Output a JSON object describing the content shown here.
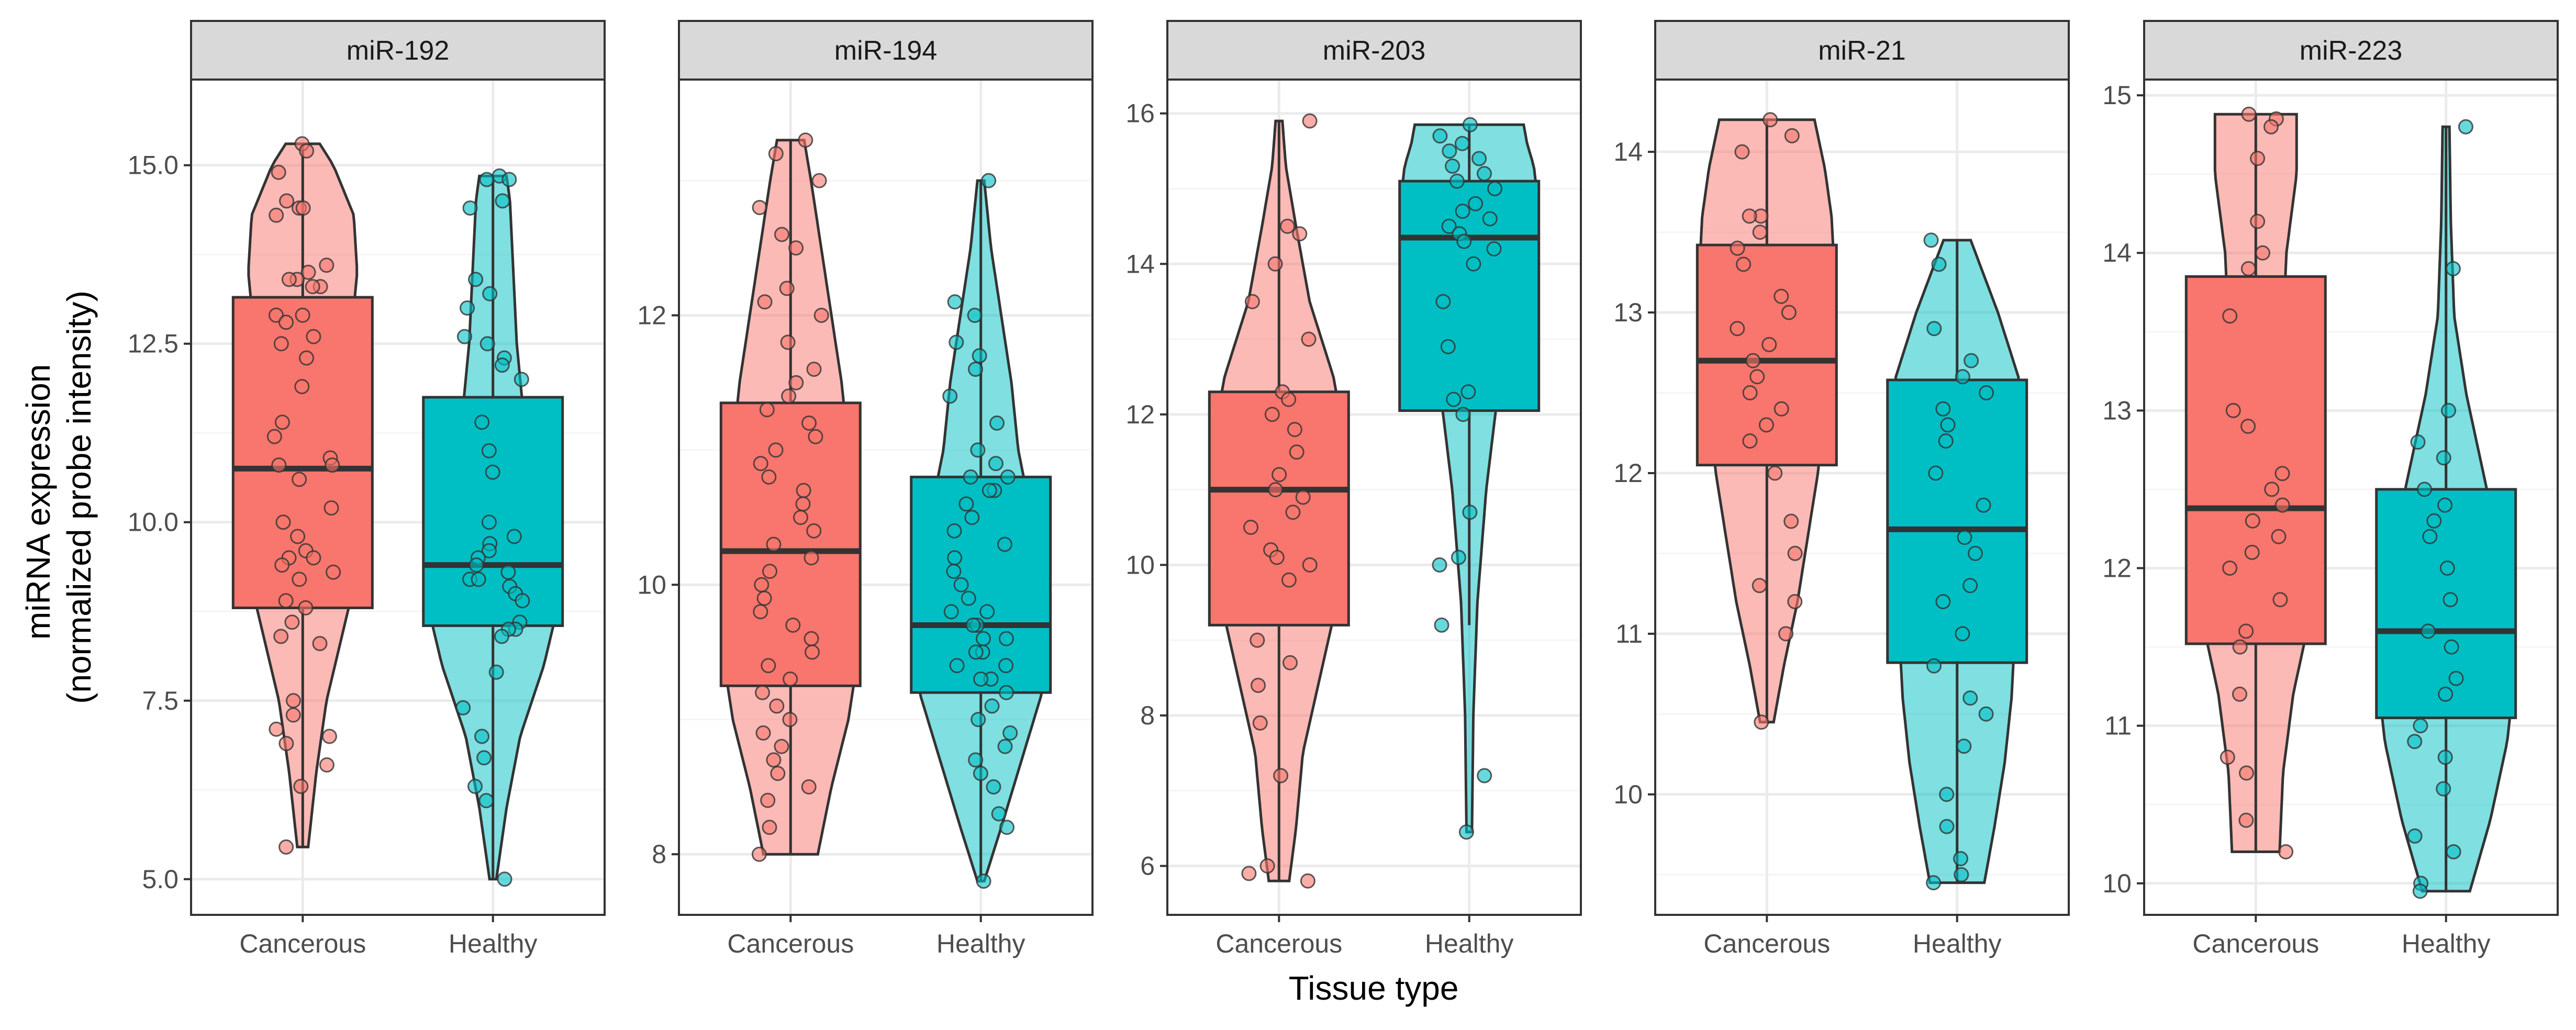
{
  "figure": {
    "xlabel": "Tissue type",
    "ylabel_line1": "miRNA expression",
    "ylabel_line2": "(normalized probe intensity)"
  },
  "colors": {
    "Cancerous": "#F8766D",
    "Healthy": "#00BFC4",
    "strip": "#D9D9D9",
    "grid_major": "#EBEBEB",
    "grid_minor": "#F5F5F5",
    "outline": "#333333"
  },
  "chart_data": [
    {
      "type": "violin+box+jitter",
      "title": "miR-192",
      "categories": [
        "Cancerous",
        "Healthy"
      ],
      "ylim": [
        4.5,
        16.2
      ],
      "yticks": [
        5.0,
        7.5,
        10.0,
        12.5,
        15.0
      ],
      "yticklabels": [
        "5.0",
        "7.5",
        "10.0",
        "12.5",
        "15.0"
      ],
      "series": [
        {
          "name": "Cancerous",
          "range": [
            5.45,
            15.3
          ],
          "box": {
            "q1": 8.8,
            "median": 10.75,
            "q3": 13.15,
            "whisker_low": 5.45,
            "whisker_high": 15.3
          },
          "density": [
            [
              5.45,
              0.08
            ],
            [
              6.5,
              0.2
            ],
            [
              7.5,
              0.35
            ],
            [
              8.5,
              0.6
            ],
            [
              9.5,
              0.85
            ],
            [
              10.5,
              1.0
            ],
            [
              11.5,
              0.8
            ],
            [
              12.5,
              0.7
            ],
            [
              13.5,
              0.8
            ],
            [
              14.3,
              0.75
            ],
            [
              15.0,
              0.45
            ],
            [
              15.3,
              0.25
            ]
          ],
          "points": [
            15.3,
            15.2,
            14.9,
            14.5,
            14.4,
            14.4,
            14.3,
            13.6,
            13.5,
            13.4,
            13.4,
            13.3,
            13.3,
            12.9,
            12.9,
            12.8,
            12.6,
            12.5,
            12.3,
            11.9,
            11.4,
            11.2,
            10.9,
            10.8,
            10.8,
            10.6,
            10.2,
            10.0,
            9.8,
            9.6,
            9.5,
            9.5,
            9.4,
            9.3,
            9.2,
            8.9,
            8.8,
            8.6,
            8.4,
            8.3,
            7.5,
            7.3,
            7.1,
            7.0,
            6.9,
            6.6,
            6.3,
            5.45
          ]
        },
        {
          "name": "Healthy",
          "range": [
            5.0,
            14.85
          ],
          "box": {
            "q1": 8.55,
            "median": 9.4,
            "q3": 11.75,
            "whisker_low": 5.0,
            "whisker_high": 14.85
          },
          "density": [
            [
              5.0,
              0.05
            ],
            [
              6.0,
              0.2
            ],
            [
              7.0,
              0.4
            ],
            [
              8.0,
              0.75
            ],
            [
              9.0,
              1.0
            ],
            [
              9.6,
              1.0
            ],
            [
              10.5,
              0.7
            ],
            [
              11.5,
              0.45
            ],
            [
              12.5,
              0.35
            ],
            [
              13.5,
              0.3
            ],
            [
              14.5,
              0.25
            ],
            [
              14.85,
              0.2
            ]
          ],
          "points": [
            14.85,
            14.8,
            14.8,
            14.5,
            14.4,
            13.4,
            13.2,
            13.0,
            12.6,
            12.5,
            12.3,
            12.2,
            12.0,
            11.4,
            11.0,
            10.7,
            10.0,
            9.8,
            9.7,
            9.6,
            9.5,
            9.4,
            9.3,
            9.2,
            9.2,
            9.1,
            9.0,
            8.9,
            8.6,
            8.5,
            8.5,
            8.4,
            7.9,
            7.4,
            7.0,
            6.7,
            6.3,
            6.1,
            5.0
          ]
        }
      ]
    },
    {
      "type": "violin+box+jitter",
      "title": "miR-194",
      "categories": [
        "Cancerous",
        "Healthy"
      ],
      "ylim": [
        7.55,
        13.75
      ],
      "yticks": [
        8,
        10,
        12
      ],
      "yticklabels": [
        "8",
        "10",
        "12"
      ],
      "series": [
        {
          "name": "Cancerous",
          "range": [
            8.0,
            13.3
          ],
          "box": {
            "q1": 9.25,
            "median": 10.25,
            "q3": 11.35,
            "whisker_low": 8.0,
            "whisker_high": 13.3
          },
          "density": [
            [
              8.0,
              0.4
            ],
            [
              8.5,
              0.6
            ],
            [
              9.0,
              0.85
            ],
            [
              9.5,
              1.0
            ],
            [
              10.0,
              1.0
            ],
            [
              10.5,
              0.95
            ],
            [
              11.0,
              0.85
            ],
            [
              11.5,
              0.75
            ],
            [
              12.0,
              0.6
            ],
            [
              12.5,
              0.45
            ],
            [
              13.0,
              0.3
            ],
            [
              13.3,
              0.2
            ]
          ],
          "points": [
            13.3,
            13.2,
            13.0,
            12.8,
            12.6,
            12.5,
            12.2,
            12.1,
            12.0,
            11.8,
            11.6,
            11.5,
            11.4,
            11.3,
            11.2,
            11.1,
            11.0,
            10.9,
            10.8,
            10.7,
            10.6,
            10.5,
            10.4,
            10.3,
            10.2,
            10.1,
            10.0,
            9.9,
            9.8,
            9.7,
            9.6,
            9.5,
            9.4,
            9.3,
            9.2,
            9.1,
            9.0,
            8.9,
            8.8,
            8.7,
            8.6,
            8.5,
            8.4,
            8.2,
            8.0
          ]
        },
        {
          "name": "Healthy",
          "range": [
            7.8,
            13.0
          ],
          "box": {
            "q1": 9.2,
            "median": 9.7,
            "q3": 10.8,
            "whisker_low": 7.8,
            "whisker_high": 13.0
          },
          "density": [
            [
              7.8,
              0.05
            ],
            [
              8.2,
              0.3
            ],
            [
              8.7,
              0.6
            ],
            [
              9.2,
              0.9
            ],
            [
              9.6,
              1.0
            ],
            [
              10.0,
              0.9
            ],
            [
              10.5,
              0.75
            ],
            [
              11.0,
              0.55
            ],
            [
              11.5,
              0.45
            ],
            [
              12.0,
              0.3
            ],
            [
              12.5,
              0.15
            ],
            [
              13.0,
              0.05
            ]
          ],
          "points": [
            13.0,
            12.1,
            12.0,
            11.8,
            11.7,
            11.6,
            11.4,
            11.2,
            11.0,
            10.9,
            10.8,
            10.8,
            10.7,
            10.7,
            10.6,
            10.5,
            10.4,
            10.3,
            10.2,
            10.1,
            10.0,
            9.9,
            9.8,
            9.8,
            9.7,
            9.7,
            9.6,
            9.6,
            9.5,
            9.5,
            9.4,
            9.4,
            9.3,
            9.3,
            9.2,
            9.1,
            9.0,
            8.9,
            8.8,
            8.7,
            8.6,
            8.5,
            8.3,
            8.2,
            7.8
          ]
        }
      ]
    },
    {
      "type": "violin+box+jitter",
      "title": "miR-203",
      "categories": [
        "Cancerous",
        "Healthy"
      ],
      "ylim": [
        5.35,
        16.45
      ],
      "yticks": [
        6,
        8,
        10,
        12,
        14,
        16
      ],
      "yticklabels": [
        "6",
        "8",
        "10",
        "12",
        "14",
        "16"
      ],
      "series": [
        {
          "name": "Cancerous",
          "range": [
            5.8,
            15.9
          ],
          "box": {
            "q1": 9.2,
            "median": 11.0,
            "q3": 12.3,
            "whisker_low": 5.8,
            "whisker_high": 15.9
          },
          "density": [
            [
              5.8,
              0.15
            ],
            [
              6.5,
              0.25
            ],
            [
              7.5,
              0.35
            ],
            [
              8.5,
              0.6
            ],
            [
              9.5,
              0.85
            ],
            [
              10.5,
              1.0
            ],
            [
              11.5,
              1.0
            ],
            [
              12.5,
              0.8
            ],
            [
              13.5,
              0.45
            ],
            [
              14.5,
              0.25
            ],
            [
              15.3,
              0.1
            ],
            [
              15.9,
              0.05
            ]
          ],
          "points": [
            15.9,
            14.5,
            14.4,
            14.0,
            13.5,
            13.0,
            12.3,
            12.2,
            12.0,
            11.8,
            11.5,
            11.2,
            11.0,
            10.9,
            10.7,
            10.5,
            10.2,
            10.1,
            10.0,
            9.8,
            9.0,
            8.7,
            8.4,
            7.9,
            7.2,
            6.0,
            5.9,
            5.8
          ]
        },
        {
          "name": "Healthy",
          "range": [
            6.45,
            15.85
          ],
          "box": {
            "q1": 12.05,
            "median": 14.35,
            "q3": 15.1,
            "whisker_low": 9.2,
            "whisker_high": 15.85
          },
          "density": [
            [
              6.45,
              0.04
            ],
            [
              8.0,
              0.06
            ],
            [
              9.5,
              0.12
            ],
            [
              11.0,
              0.25
            ],
            [
              12.5,
              0.45
            ],
            [
              13.5,
              0.65
            ],
            [
              14.3,
              0.9
            ],
            [
              14.9,
              1.0
            ],
            [
              15.3,
              0.95
            ],
            [
              15.6,
              0.85
            ],
            [
              15.85,
              0.8
            ]
          ],
          "points": [
            15.85,
            15.7,
            15.6,
            15.5,
            15.4,
            15.3,
            15.2,
            15.1,
            15.0,
            14.8,
            14.7,
            14.6,
            14.5,
            14.4,
            14.3,
            14.2,
            14.0,
            13.5,
            12.9,
            12.3,
            12.2,
            12.0,
            10.7,
            10.1,
            10.0,
            9.2,
            7.2,
            6.45
          ]
        }
      ]
    },
    {
      "type": "violin+box+jitter",
      "title": "miR-21",
      "categories": [
        "Cancerous",
        "Healthy"
      ],
      "ylim": [
        9.25,
        14.45
      ],
      "yticks": [
        10,
        11,
        12,
        13,
        14
      ],
      "yticklabels": [
        "10",
        "11",
        "12",
        "13",
        "14"
      ],
      "series": [
        {
          "name": "Cancerous",
          "range": [
            10.45,
            14.2
          ],
          "box": {
            "q1": 12.05,
            "median": 12.7,
            "q3": 13.42,
            "whisker_low": 10.45,
            "whisker_high": 14.2
          },
          "density": [
            [
              10.45,
              0.1
            ],
            [
              10.8,
              0.25
            ],
            [
              11.2,
              0.45
            ],
            [
              11.6,
              0.6
            ],
            [
              12.0,
              0.75
            ],
            [
              12.4,
              0.85
            ],
            [
              12.8,
              0.95
            ],
            [
              13.2,
              1.0
            ],
            [
              13.6,
              0.95
            ],
            [
              13.9,
              0.85
            ],
            [
              14.2,
              0.7
            ]
          ],
          "points": [
            14.2,
            14.1,
            14.0,
            13.6,
            13.6,
            13.5,
            13.4,
            13.3,
            13.1,
            13.0,
            12.9,
            12.8,
            12.7,
            12.6,
            12.5,
            12.4,
            12.3,
            12.2,
            12.0,
            11.7,
            11.5,
            11.3,
            11.2,
            11.0,
            10.45
          ]
        },
        {
          "name": "Healthy",
          "range": [
            9.45,
            13.45
          ],
          "box": {
            "q1": 10.82,
            "median": 11.65,
            "q3": 12.58,
            "whisker_low": 9.45,
            "whisker_high": 13.45
          },
          "density": [
            [
              9.45,
              0.4
            ],
            [
              9.8,
              0.55
            ],
            [
              10.2,
              0.7
            ],
            [
              10.6,
              0.8
            ],
            [
              11.0,
              0.85
            ],
            [
              11.4,
              0.9
            ],
            [
              11.8,
              0.95
            ],
            [
              12.2,
              1.0
            ],
            [
              12.6,
              0.9
            ],
            [
              13.0,
              0.6
            ],
            [
              13.45,
              0.2
            ]
          ],
          "points": [
            13.45,
            13.3,
            12.9,
            12.7,
            12.6,
            12.5,
            12.4,
            12.3,
            12.2,
            12.0,
            11.8,
            11.6,
            11.5,
            11.3,
            11.2,
            11.0,
            10.8,
            10.6,
            10.5,
            10.3,
            10.0,
            9.8,
            9.6,
            9.5,
            9.45
          ]
        }
      ]
    },
    {
      "type": "violin+box+jitter",
      "title": "miR-223",
      "categories": [
        "Cancerous",
        "Healthy"
      ],
      "ylim": [
        9.8,
        15.1
      ],
      "yticks": [
        10,
        11,
        12,
        13,
        14,
        15
      ],
      "yticklabels": [
        "10",
        "11",
        "12",
        "13",
        "14",
        "15"
      ],
      "series": [
        {
          "name": "Cancerous",
          "range": [
            10.2,
            14.88
          ],
          "box": {
            "q1": 11.52,
            "median": 12.38,
            "q3": 13.85,
            "whisker_low": 10.2,
            "whisker_high": 14.88
          },
          "density": [
            [
              10.2,
              0.35
            ],
            [
              10.7,
              0.4
            ],
            [
              11.2,
              0.55
            ],
            [
              11.7,
              0.8
            ],
            [
              12.2,
              1.0
            ],
            [
              12.6,
              0.9
            ],
            [
              13.0,
              0.6
            ],
            [
              13.5,
              0.4
            ],
            [
              14.0,
              0.45
            ],
            [
              14.5,
              0.6
            ],
            [
              14.88,
              0.6
            ]
          ],
          "points": [
            14.88,
            14.85,
            14.8,
            14.6,
            14.2,
            14.0,
            13.9,
            13.6,
            13.0,
            12.9,
            12.6,
            12.5,
            12.4,
            12.3,
            12.2,
            12.1,
            12.0,
            11.8,
            11.6,
            11.5,
            11.2,
            10.8,
            10.7,
            10.4,
            10.2
          ]
        },
        {
          "name": "Healthy",
          "range": [
            9.95,
            14.8
          ],
          "box": {
            "q1": 11.05,
            "median": 11.6,
            "q3": 12.5,
            "whisker_low": 9.95,
            "whisker_high": 14.8
          },
          "density": [
            [
              9.95,
              0.35
            ],
            [
              10.4,
              0.65
            ],
            [
              10.9,
              0.9
            ],
            [
              11.3,
              1.0
            ],
            [
              11.7,
              0.95
            ],
            [
              12.1,
              0.8
            ],
            [
              12.6,
              0.55
            ],
            [
              13.1,
              0.3
            ],
            [
              13.6,
              0.12
            ],
            [
              14.2,
              0.07
            ],
            [
              14.8,
              0.05
            ]
          ],
          "points": [
            14.8,
            13.9,
            13.0,
            12.8,
            12.7,
            12.5,
            12.4,
            12.3,
            12.2,
            12.0,
            11.8,
            11.6,
            11.5,
            11.3,
            11.2,
            11.0,
            10.9,
            10.8,
            10.6,
            10.3,
            10.2,
            10.0,
            9.95
          ]
        }
      ]
    }
  ]
}
